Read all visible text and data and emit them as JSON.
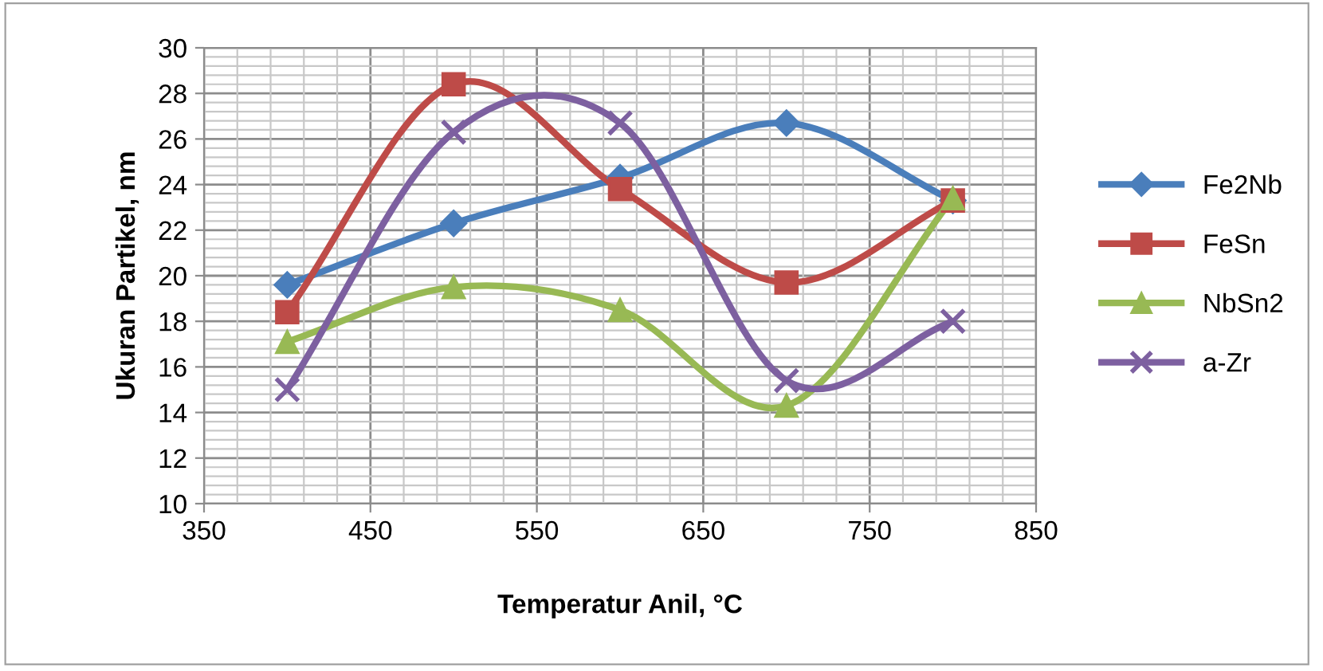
{
  "chart_data": {
    "type": "line",
    "xlabel": "Temperatur Anil, °C",
    "ylabel": "Ukuran Partikel, nm",
    "x": [
      400,
      500,
      600,
      700,
      800
    ],
    "series": [
      {
        "name": "Fe2Nb",
        "color": "#4a7ebb",
        "marker": "diamond",
        "values": [
          19.6,
          22.3,
          24.3,
          26.7,
          23.3
        ]
      },
      {
        "name": "FeSn",
        "color": "#be4b48",
        "marker": "square",
        "values": [
          18.4,
          28.4,
          23.8,
          19.7,
          23.3
        ]
      },
      {
        "name": "NbSn2",
        "color": "#98b954",
        "marker": "triangle",
        "values": [
          17.1,
          19.5,
          18.5,
          14.3,
          23.4
        ]
      },
      {
        "name": "a-Zr",
        "color": "#7d60a0",
        "marker": "cross",
        "values": [
          15.0,
          26.3,
          26.7,
          15.4,
          18.0
        ]
      }
    ],
    "xlim": [
      350,
      850
    ],
    "xticks": [
      350,
      450,
      550,
      650,
      750,
      850
    ],
    "ylim": [
      10,
      30
    ],
    "yticks": [
      10,
      12,
      14,
      16,
      18,
      20,
      22,
      24,
      26,
      28,
      30
    ],
    "grid": true,
    "legend": "right"
  }
}
